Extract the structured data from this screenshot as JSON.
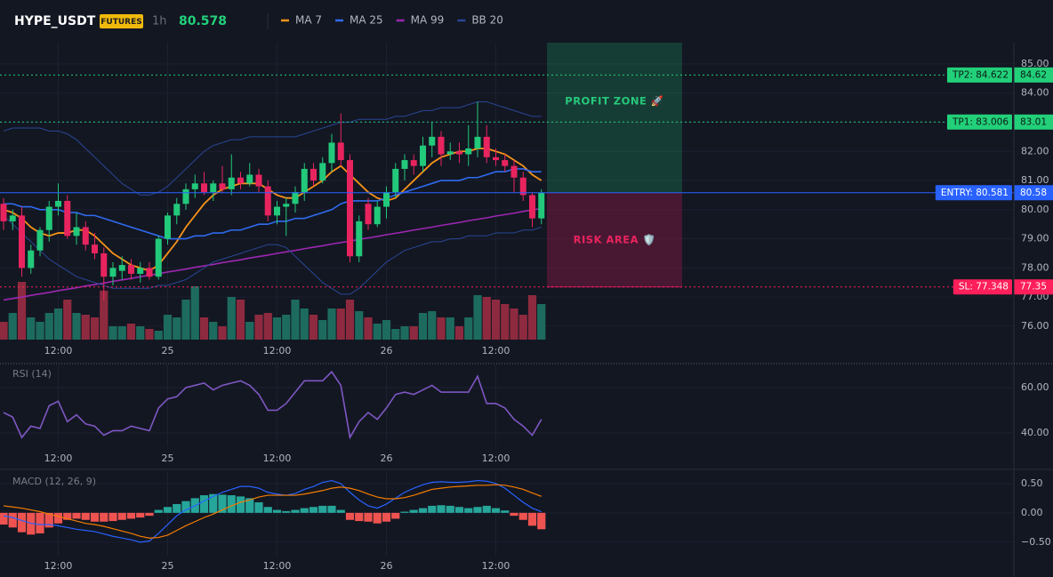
{
  "chart_data": {
    "type": "candlestick",
    "symbol": "HYPE_USDT",
    "badge": "FUTURES",
    "interval": "1h",
    "last_price": 80.578,
    "categories": [
      null,
      null,
      null,
      null,
      null,
      null,
      "12:00",
      null,
      null,
      null,
      null,
      null,
      null,
      null,
      null,
      null,
      null,
      null,
      "25",
      null,
      null,
      null,
      null,
      null,
      null,
      null,
      null,
      null,
      null,
      null,
      "12:00",
      null,
      null,
      null,
      null,
      null,
      null,
      null,
      null,
      null,
      null,
      null,
      "26",
      null,
      null,
      null,
      null,
      null,
      null,
      null,
      null,
      null,
      null,
      null,
      "12:00",
      null,
      null,
      null,
      null,
      null
    ],
    "open": [
      80.2,
      79.6,
      79.8,
      78.0,
      78.6,
      79.3,
      80.1,
      80.3,
      79.1,
      79.4,
      78.8,
      78.5,
      77.7,
      77.9,
      78.1,
      77.8,
      78.0,
      77.7,
      79.0,
      79.8,
      80.2,
      80.7,
      80.9,
      80.6,
      80.9,
      80.7,
      81.1,
      80.9,
      81.2,
      80.8,
      79.8,
      80.1,
      80.2,
      80.6,
      81.4,
      81.0,
      81.6,
      82.3,
      81.7,
      78.4,
      80.2,
      79.5,
      80.1,
      80.6,
      81.4,
      81.7,
      81.5,
      82.2,
      82.5,
      81.9,
      82.0,
      81.9,
      82.1,
      82.5,
      81.8,
      81.7,
      81.5,
      81.1,
      80.5,
      79.7
    ],
    "high": [
      80.4,
      80.0,
      80.1,
      78.8,
      79.4,
      80.3,
      80.9,
      80.5,
      79.9,
      79.6,
      79.2,
      78.7,
      78.2,
      78.4,
      78.3,
      78.2,
      78.2,
      79.1,
      79.9,
      80.4,
      80.9,
      81.2,
      81.3,
      81.0,
      81.5,
      81.9,
      81.3,
      81.6,
      81.4,
      81.0,
      80.3,
      80.4,
      80.8,
      81.6,
      81.6,
      81.8,
      82.6,
      83.3,
      81.9,
      79.8,
      80.4,
      80.3,
      80.8,
      81.6,
      81.9,
      81.9,
      82.5,
      83.0,
      82.7,
      82.3,
      82.3,
      82.9,
      83.7,
      82.9,
      82.1,
      81.9,
      81.7,
      81.3,
      80.6,
      80.7
    ],
    "low": [
      79.3,
      79.3,
      77.7,
      77.8,
      78.4,
      78.9,
      79.8,
      79.0,
      78.8,
      78.6,
      78.3,
      76.9,
      77.4,
      77.6,
      77.6,
      77.5,
      77.6,
      77.6,
      78.8,
      79.5,
      80.0,
      80.4,
      80.5,
      80.3,
      80.6,
      80.5,
      80.7,
      80.8,
      80.6,
      79.6,
      79.5,
      79.1,
      79.9,
      80.3,
      80.8,
      80.9,
      81.3,
      81.5,
      78.2,
      78.2,
      79.3,
      79.4,
      79.7,
      80.4,
      81.0,
      81.2,
      81.3,
      81.8,
      81.5,
      81.7,
      81.6,
      81.5,
      81.8,
      81.6,
      81.5,
      81.3,
      80.6,
      80.3,
      79.4,
      79.5
    ],
    "close": [
      79.6,
      79.8,
      78.0,
      78.6,
      79.3,
      80.1,
      80.3,
      79.1,
      79.4,
      78.8,
      78.5,
      77.7,
      78.0,
      78.1,
      77.8,
      78.0,
      77.7,
      79.0,
      79.8,
      80.2,
      80.7,
      80.9,
      80.6,
      80.9,
      80.7,
      81.1,
      80.9,
      81.2,
      80.8,
      79.8,
      80.1,
      80.2,
      80.6,
      81.4,
      81.0,
      81.6,
      82.3,
      81.7,
      78.4,
      79.6,
      79.5,
      80.1,
      80.6,
      81.4,
      81.7,
      81.5,
      82.2,
      82.5,
      81.9,
      82.0,
      81.9,
      82.1,
      82.5,
      81.8,
      81.7,
      81.5,
      81.1,
      80.5,
      79.7,
      80.58
    ],
    "volume": [
      20,
      30,
      65,
      25,
      20,
      30,
      35,
      45,
      30,
      28,
      25,
      55,
      15,
      15,
      18,
      15,
      12,
      10,
      28,
      25,
      45,
      60,
      25,
      20,
      15,
      48,
      45,
      20,
      28,
      30,
      25,
      28,
      45,
      35,
      28,
      22,
      35,
      35,
      45,
      32,
      25,
      18,
      22,
      12,
      15,
      15,
      30,
      32,
      25,
      25,
      15,
      25,
      50,
      48,
      45,
      40,
      35,
      28,
      50,
      40
    ],
    "up_color": "#22c97a",
    "down_color": "#e8245f",
    "series": [
      {
        "name": "MA 7",
        "color": "#f7931a",
        "values": [
          80.0,
          79.9,
          79.7,
          79.4,
          79.2,
          79.1,
          79.2,
          79.2,
          79.3,
          79.3,
          79.1,
          78.8,
          78.5,
          78.3,
          78.1,
          78.0,
          77.9,
          78.1,
          78.5,
          78.9,
          79.4,
          79.8,
          80.2,
          80.5,
          80.7,
          80.8,
          80.9,
          80.9,
          80.9,
          80.7,
          80.5,
          80.4,
          80.4,
          80.6,
          80.8,
          81.0,
          81.3,
          81.5,
          81.2,
          80.9,
          80.6,
          80.4,
          80.3,
          80.4,
          80.7,
          81.0,
          81.3,
          81.6,
          81.8,
          81.9,
          82.0,
          82.0,
          82.1,
          82.1,
          82.0,
          81.9,
          81.7,
          81.5,
          81.2,
          81.0
        ]
      },
      {
        "name": "MA 25",
        "color": "#2f6bf0",
        "values": [
          80.2,
          80.2,
          80.1,
          80.1,
          80.0,
          80.0,
          80.0,
          79.9,
          79.9,
          79.8,
          79.8,
          79.7,
          79.6,
          79.5,
          79.4,
          79.3,
          79.2,
          79.1,
          79.0,
          79.0,
          79.0,
          79.1,
          79.1,
          79.2,
          79.2,
          79.3,
          79.3,
          79.4,
          79.5,
          79.5,
          79.6,
          79.6,
          79.7,
          79.7,
          79.8,
          79.9,
          80.0,
          80.2,
          80.3,
          80.3,
          80.3,
          80.3,
          80.4,
          80.5,
          80.6,
          80.7,
          80.8,
          80.9,
          81.0,
          81.0,
          81.0,
          81.1,
          81.1,
          81.2,
          81.3,
          81.3,
          81.4,
          81.4,
          81.3,
          81.3
        ]
      },
      {
        "name": "MA 99",
        "color": "#9c27b0",
        "values": [
          76.9,
          76.95,
          77.0,
          77.06,
          77.11,
          77.16,
          77.22,
          77.27,
          77.32,
          77.38,
          77.43,
          77.48,
          77.54,
          77.59,
          77.64,
          77.7,
          77.75,
          77.8,
          77.86,
          77.91,
          77.96,
          78.02,
          78.07,
          78.12,
          78.18,
          78.23,
          78.28,
          78.34,
          78.39,
          78.44,
          78.5,
          78.55,
          78.6,
          78.66,
          78.71,
          78.76,
          78.82,
          78.87,
          78.92,
          78.98,
          79.03,
          79.08,
          79.14,
          79.19,
          79.24,
          79.3,
          79.35,
          79.4,
          79.46,
          79.51,
          79.56,
          79.62,
          79.67,
          79.72,
          79.78,
          79.83,
          79.88,
          79.94,
          79.99,
          80.04
        ]
      },
      {
        "name": "BB 20",
        "color": "#2a4796",
        "upper": [
          82.7,
          82.8,
          82.8,
          82.8,
          82.8,
          82.7,
          82.7,
          82.6,
          82.4,
          82.1,
          81.8,
          81.5,
          81.2,
          80.9,
          80.7,
          80.5,
          80.5,
          80.6,
          80.8,
          81.1,
          81.4,
          81.7,
          82.0,
          82.2,
          82.3,
          82.4,
          82.4,
          82.5,
          82.5,
          82.5,
          82.5,
          82.5,
          82.5,
          82.6,
          82.7,
          82.8,
          82.9,
          83.0,
          83.0,
          83.1,
          83.1,
          83.1,
          83.1,
          83.2,
          83.2,
          83.3,
          83.4,
          83.4,
          83.5,
          83.5,
          83.5,
          83.6,
          83.7,
          83.7,
          83.6,
          83.5,
          83.4,
          83.3,
          83.2,
          83.2
        ],
        "lower": [
          79.8,
          79.5,
          79.2,
          78.9,
          78.6,
          78.3,
          78.1,
          77.9,
          77.7,
          77.6,
          77.5,
          77.4,
          77.3,
          77.3,
          77.3,
          77.3,
          77.3,
          77.4,
          77.4,
          77.5,
          77.6,
          77.8,
          78.0,
          78.2,
          78.3,
          78.4,
          78.5,
          78.6,
          78.7,
          78.8,
          78.8,
          78.7,
          78.4,
          78.1,
          77.8,
          77.5,
          77.3,
          77.1,
          77.1,
          77.3,
          77.6,
          77.9,
          78.2,
          78.4,
          78.6,
          78.7,
          78.8,
          78.9,
          78.9,
          79.0,
          79.0,
          79.1,
          79.1,
          79.1,
          79.2,
          79.2,
          79.2,
          79.3,
          79.3,
          79.4
        ]
      }
    ],
    "ylim": [
      75.54,
      85.73
    ],
    "yticks": [
      {
        "value": 85,
        "label": "85.00"
      },
      {
        "value": 84,
        "label": "84.00"
      },
      {
        "value": 83,
        "label": "83.00"
      },
      {
        "value": 82,
        "label": "82.00"
      },
      {
        "value": 81,
        "label": "81.00"
      },
      {
        "value": 80,
        "label": "80.00"
      },
      {
        "value": 79,
        "label": "79.00"
      },
      {
        "value": 78,
        "label": "78.00"
      },
      {
        "value": 77,
        "label": "77.00"
      },
      {
        "value": 76,
        "label": "76.00"
      }
    ],
    "grid": true,
    "levels": [
      {
        "value": 84.622,
        "label": "TP2: 84.622",
        "axis_label": "84.62",
        "color": "#22d07a",
        "text_color": "#0b1a12",
        "line": "dotted"
      },
      {
        "value": 83.006,
        "label": "TP1: 83.006",
        "axis_label": "83.01",
        "color": "#22d07a",
        "text_color": "#0b1a12",
        "line": "dotted"
      },
      {
        "value": 80.581,
        "label": "ENTRY: 80.581",
        "axis_label": "80.58",
        "color": "#2962ff",
        "text_color": "#ffffff",
        "line": "solid"
      },
      {
        "value": 77.348,
        "label": "SL: 77.348",
        "axis_label": "77.35",
        "color": "#ff1f5a",
        "text_color": "#ffffff",
        "line": "dotted"
      }
    ],
    "zones": [
      {
        "label": "PROFIT ZONE 🚀",
        "color": "#1fae6e"
      },
      {
        "label": "RISK AREA 🛡️",
        "color": "#c2185b"
      }
    ],
    "rsi": {
      "label": "RSI (14)",
      "color": "#7e57c2",
      "values": [
        49,
        47,
        38,
        43,
        42,
        52,
        54,
        45,
        48,
        44,
        43,
        39,
        41,
        41,
        43,
        42,
        41,
        51,
        55,
        56,
        60,
        61,
        62,
        59,
        61,
        62,
        63,
        61,
        57,
        50,
        50,
        53,
        58,
        63,
        63,
        63,
        67,
        61,
        38,
        45,
        49,
        46,
        51,
        57,
        58,
        57,
        59,
        61,
        58,
        58,
        58,
        58,
        65,
        53,
        53,
        51,
        46,
        43,
        39,
        46
      ],
      "ylim": [
        34.1,
        70.2
      ],
      "yticks": [
        {
          "value": 60,
          "label": "60.00"
        },
        {
          "value": 40,
          "label": "40.00"
        }
      ]
    },
    "macd": {
      "label": "MACD (12, 26, 9)",
      "macd_color": "#2962ff",
      "signal_color": "#f57c00",
      "hist_colors": [
        "#26a69a",
        "#ef5350"
      ],
      "hist": [
        -0.2,
        -0.25,
        -0.33,
        -0.37,
        -0.35,
        -0.25,
        -0.18,
        -0.12,
        -0.1,
        -0.12,
        -0.15,
        -0.15,
        -0.14,
        -0.12,
        -0.1,
        -0.08,
        -0.05,
        0.05,
        0.1,
        0.15,
        0.2,
        0.25,
        0.3,
        0.32,
        0.31,
        0.3,
        0.28,
        0.25,
        0.18,
        0.1,
        0.05,
        0.03,
        0.05,
        0.08,
        0.1,
        0.12,
        0.12,
        0.05,
        -0.12,
        -0.14,
        -0.15,
        -0.18,
        -0.15,
        -0.1,
        0.02,
        0.05,
        0.08,
        0.12,
        0.13,
        0.12,
        0.1,
        0.08,
        0.1,
        0.12,
        0.08,
        0.04,
        -0.05,
        -0.12,
        -0.22,
        -0.28
      ],
      "macd": [
        -0.05,
        -0.08,
        -0.13,
        -0.18,
        -0.2,
        -0.2,
        -0.22,
        -0.25,
        -0.28,
        -0.3,
        -0.32,
        -0.36,
        -0.4,
        -0.43,
        -0.46,
        -0.5,
        -0.48,
        -0.35,
        -0.2,
        -0.05,
        0.05,
        0.12,
        0.2,
        0.28,
        0.35,
        0.4,
        0.45,
        0.45,
        0.42,
        0.35,
        0.32,
        0.3,
        0.33,
        0.4,
        0.45,
        0.52,
        0.55,
        0.5,
        0.35,
        0.22,
        0.12,
        0.08,
        0.15,
        0.25,
        0.35,
        0.42,
        0.48,
        0.52,
        0.53,
        0.52,
        0.52,
        0.53,
        0.55,
        0.54,
        0.5,
        0.42,
        0.3,
        0.18,
        0.08,
        0.02
      ],
      "signal": [
        0.12,
        0.1,
        0.08,
        0.05,
        0.02,
        -0.02,
        -0.06,
        -0.1,
        -0.14,
        -0.18,
        -0.2,
        -0.23,
        -0.27,
        -0.31,
        -0.35,
        -0.4,
        -0.43,
        -0.42,
        -0.38,
        -0.3,
        -0.22,
        -0.15,
        -0.08,
        -0.02,
        0.05,
        0.12,
        0.18,
        0.22,
        0.27,
        0.3,
        0.3,
        0.3,
        0.3,
        0.32,
        0.35,
        0.38,
        0.42,
        0.44,
        0.42,
        0.38,
        0.32,
        0.27,
        0.24,
        0.24,
        0.26,
        0.3,
        0.35,
        0.4,
        0.42,
        0.44,
        0.45,
        0.46,
        0.47,
        0.47,
        0.48,
        0.47,
        0.44,
        0.4,
        0.34,
        0.28
      ],
      "ylim": [
        -0.73,
        0.71
      ],
      "yticks": [
        {
          "value": 0.5,
          "label": "0.50"
        },
        {
          "value": 0,
          "label": "0.00"
        },
        {
          "value": -0.5,
          "label": "−0.50"
        }
      ]
    }
  }
}
